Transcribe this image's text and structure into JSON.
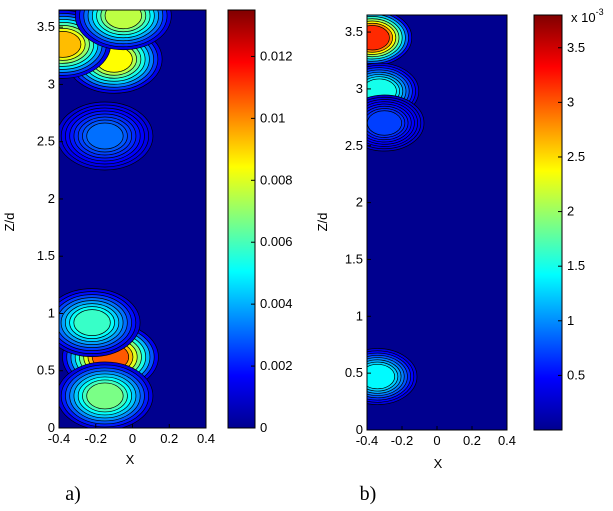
{
  "chart_data": [
    {
      "type": "heatmap",
      "panel_caption": "a)",
      "xlabel": "X",
      "ylabel": "Z/d",
      "xlim": [
        -0.4,
        0.4
      ],
      "ylim": [
        0,
        3.65
      ],
      "x_ticks": [
        "-0.4",
        "-0.2",
        "0",
        "0.2",
        "0.4"
      ],
      "x_tick_values": [
        -0.4,
        -0.2,
        0,
        0.2,
        0.4
      ],
      "y_ticks": [
        "0",
        "0.5",
        "1",
        "1.5",
        "2",
        "2.5",
        "3",
        "3.5"
      ],
      "y_tick_values": [
        0,
        0.5,
        1,
        1.5,
        2,
        2.5,
        3,
        3.5
      ],
      "colorbar": {
        "range": [
          0,
          0.0135
        ],
        "ticks": [
          "0",
          "0.002",
          "0.004",
          "0.006",
          "0.008",
          "0.01",
          "0.012"
        ],
        "tick_values": [
          0,
          0.002,
          0.004,
          0.006,
          0.008,
          0.01,
          0.012
        ],
        "multiplier": ""
      },
      "blobs": [
        {
          "x": -0.12,
          "z": 0.62,
          "value": 0.011
        },
        {
          "x": -0.22,
          "z": 0.92,
          "value": 0.0055
        },
        {
          "x": -0.15,
          "z": 0.28,
          "value": 0.0065
        },
        {
          "x": -0.1,
          "z": 3.22,
          "value": 0.0085
        },
        {
          "x": -0.38,
          "z": 3.35,
          "value": 0.0095
        },
        {
          "x": -0.05,
          "z": 3.6,
          "value": 0.0075
        },
        {
          "x": -0.15,
          "z": 2.55,
          "value": 0.0025
        }
      ]
    },
    {
      "type": "heatmap",
      "panel_caption": "b)",
      "xlabel": "X",
      "ylabel": "Z/d",
      "xlim": [
        -0.4,
        0.4
      ],
      "ylim": [
        0,
        3.65
      ],
      "x_ticks": [
        "-0.4",
        "-0.2",
        "0",
        "0.2",
        "0.4"
      ],
      "x_tick_values": [
        -0.4,
        -0.2,
        0,
        0.2,
        0.4
      ],
      "y_ticks": [
        "0",
        "0.5",
        "1",
        "1.5",
        "2",
        "2.5",
        "3",
        "3.5"
      ],
      "y_tick_values": [
        0,
        0.5,
        1,
        1.5,
        2,
        2.5,
        3,
        3.5
      ],
      "colorbar": {
        "range": [
          0,
          0.0038
        ],
        "ticks": [
          "0.5",
          "1",
          "1.5",
          "2",
          "2.5",
          "3",
          "3.5"
        ],
        "tick_values": [
          0.0005,
          0.001,
          0.0015,
          0.002,
          0.0025,
          0.003,
          0.0035
        ],
        "multiplier": "x 10",
        "multiplier_exp": "-3"
      },
      "blobs": [
        {
          "x": -0.37,
          "z": 3.45,
          "value": 0.0033
        },
        {
          "x": -0.33,
          "z": 2.98,
          "value": 0.0014
        },
        {
          "x": -0.3,
          "z": 2.7,
          "value": 0.0005
        },
        {
          "x": -0.34,
          "z": 0.47,
          "value": 0.0013
        }
      ]
    }
  ],
  "colors": {
    "cmap": [
      "#00008f",
      "#0000ff",
      "#0080ff",
      "#00ffff",
      "#80ff80",
      "#ffff00",
      "#ff8000",
      "#ff0000",
      "#800000"
    ]
  }
}
